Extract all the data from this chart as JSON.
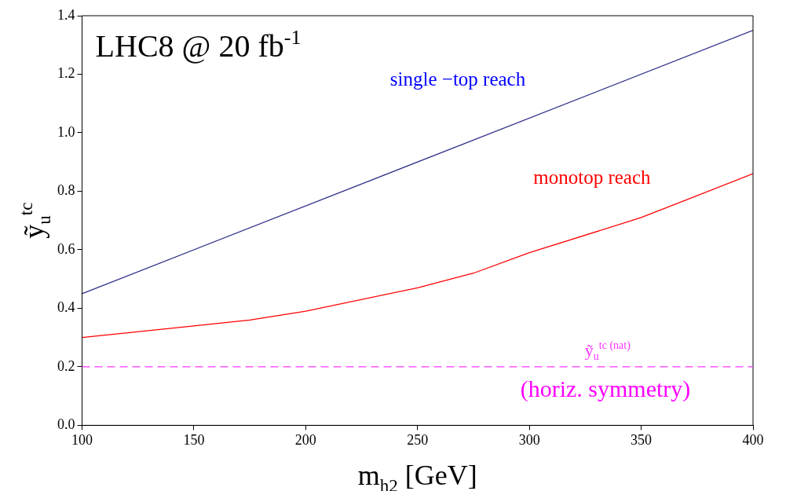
{
  "chart_data": {
    "type": "line",
    "xlabel": "m$_{h2}$ [GeV]",
    "ylabel": "ỹ$_{u}$$^{tc}$",
    "x": [
      100,
      150,
      175,
      200,
      250,
      275,
      300,
      350,
      400
    ],
    "series": [
      {
        "color": "#2e2e8a",
        "x": [
          100,
          400
        ],
        "values": [
          0.45,
          1.35
        ]
      },
      {
        "color": "#ff0000",
        "values": [
          0.3,
          0.34,
          0.36,
          0.39,
          0.47,
          0.52,
          0.59,
          0.71,
          0.86
        ]
      }
    ],
    "xlim": [
      100,
      400
    ],
    "xticks": [
      100,
      150,
      200,
      250,
      300,
      350,
      400
    ],
    "ylim": [
      0,
      1.4
    ],
    "yticks": [
      {
        "value": 0,
        "label": "0.0"
      },
      0.2,
      0.4,
      0.6,
      0.8,
      {
        "value": 1,
        "label": "1.0"
      },
      1.2,
      1.4
    ],
    "ref_lines": [
      {
        "axis": "y",
        "value": 0.2,
        "label": "ỹ$_{u}$$^{tc (nat)}$",
        "color": "#ff33ff",
        "line_style": "dashed"
      }
    ],
    "annotations": [
      "LHC8 @ 20 fb$^{-1}$",
      "single −top reach",
      "monotop reach",
      "(horiz. symmetry)"
    ],
    "grid": false,
    "legend": false,
    "marker": "none",
    "line_style": "solid"
  }
}
